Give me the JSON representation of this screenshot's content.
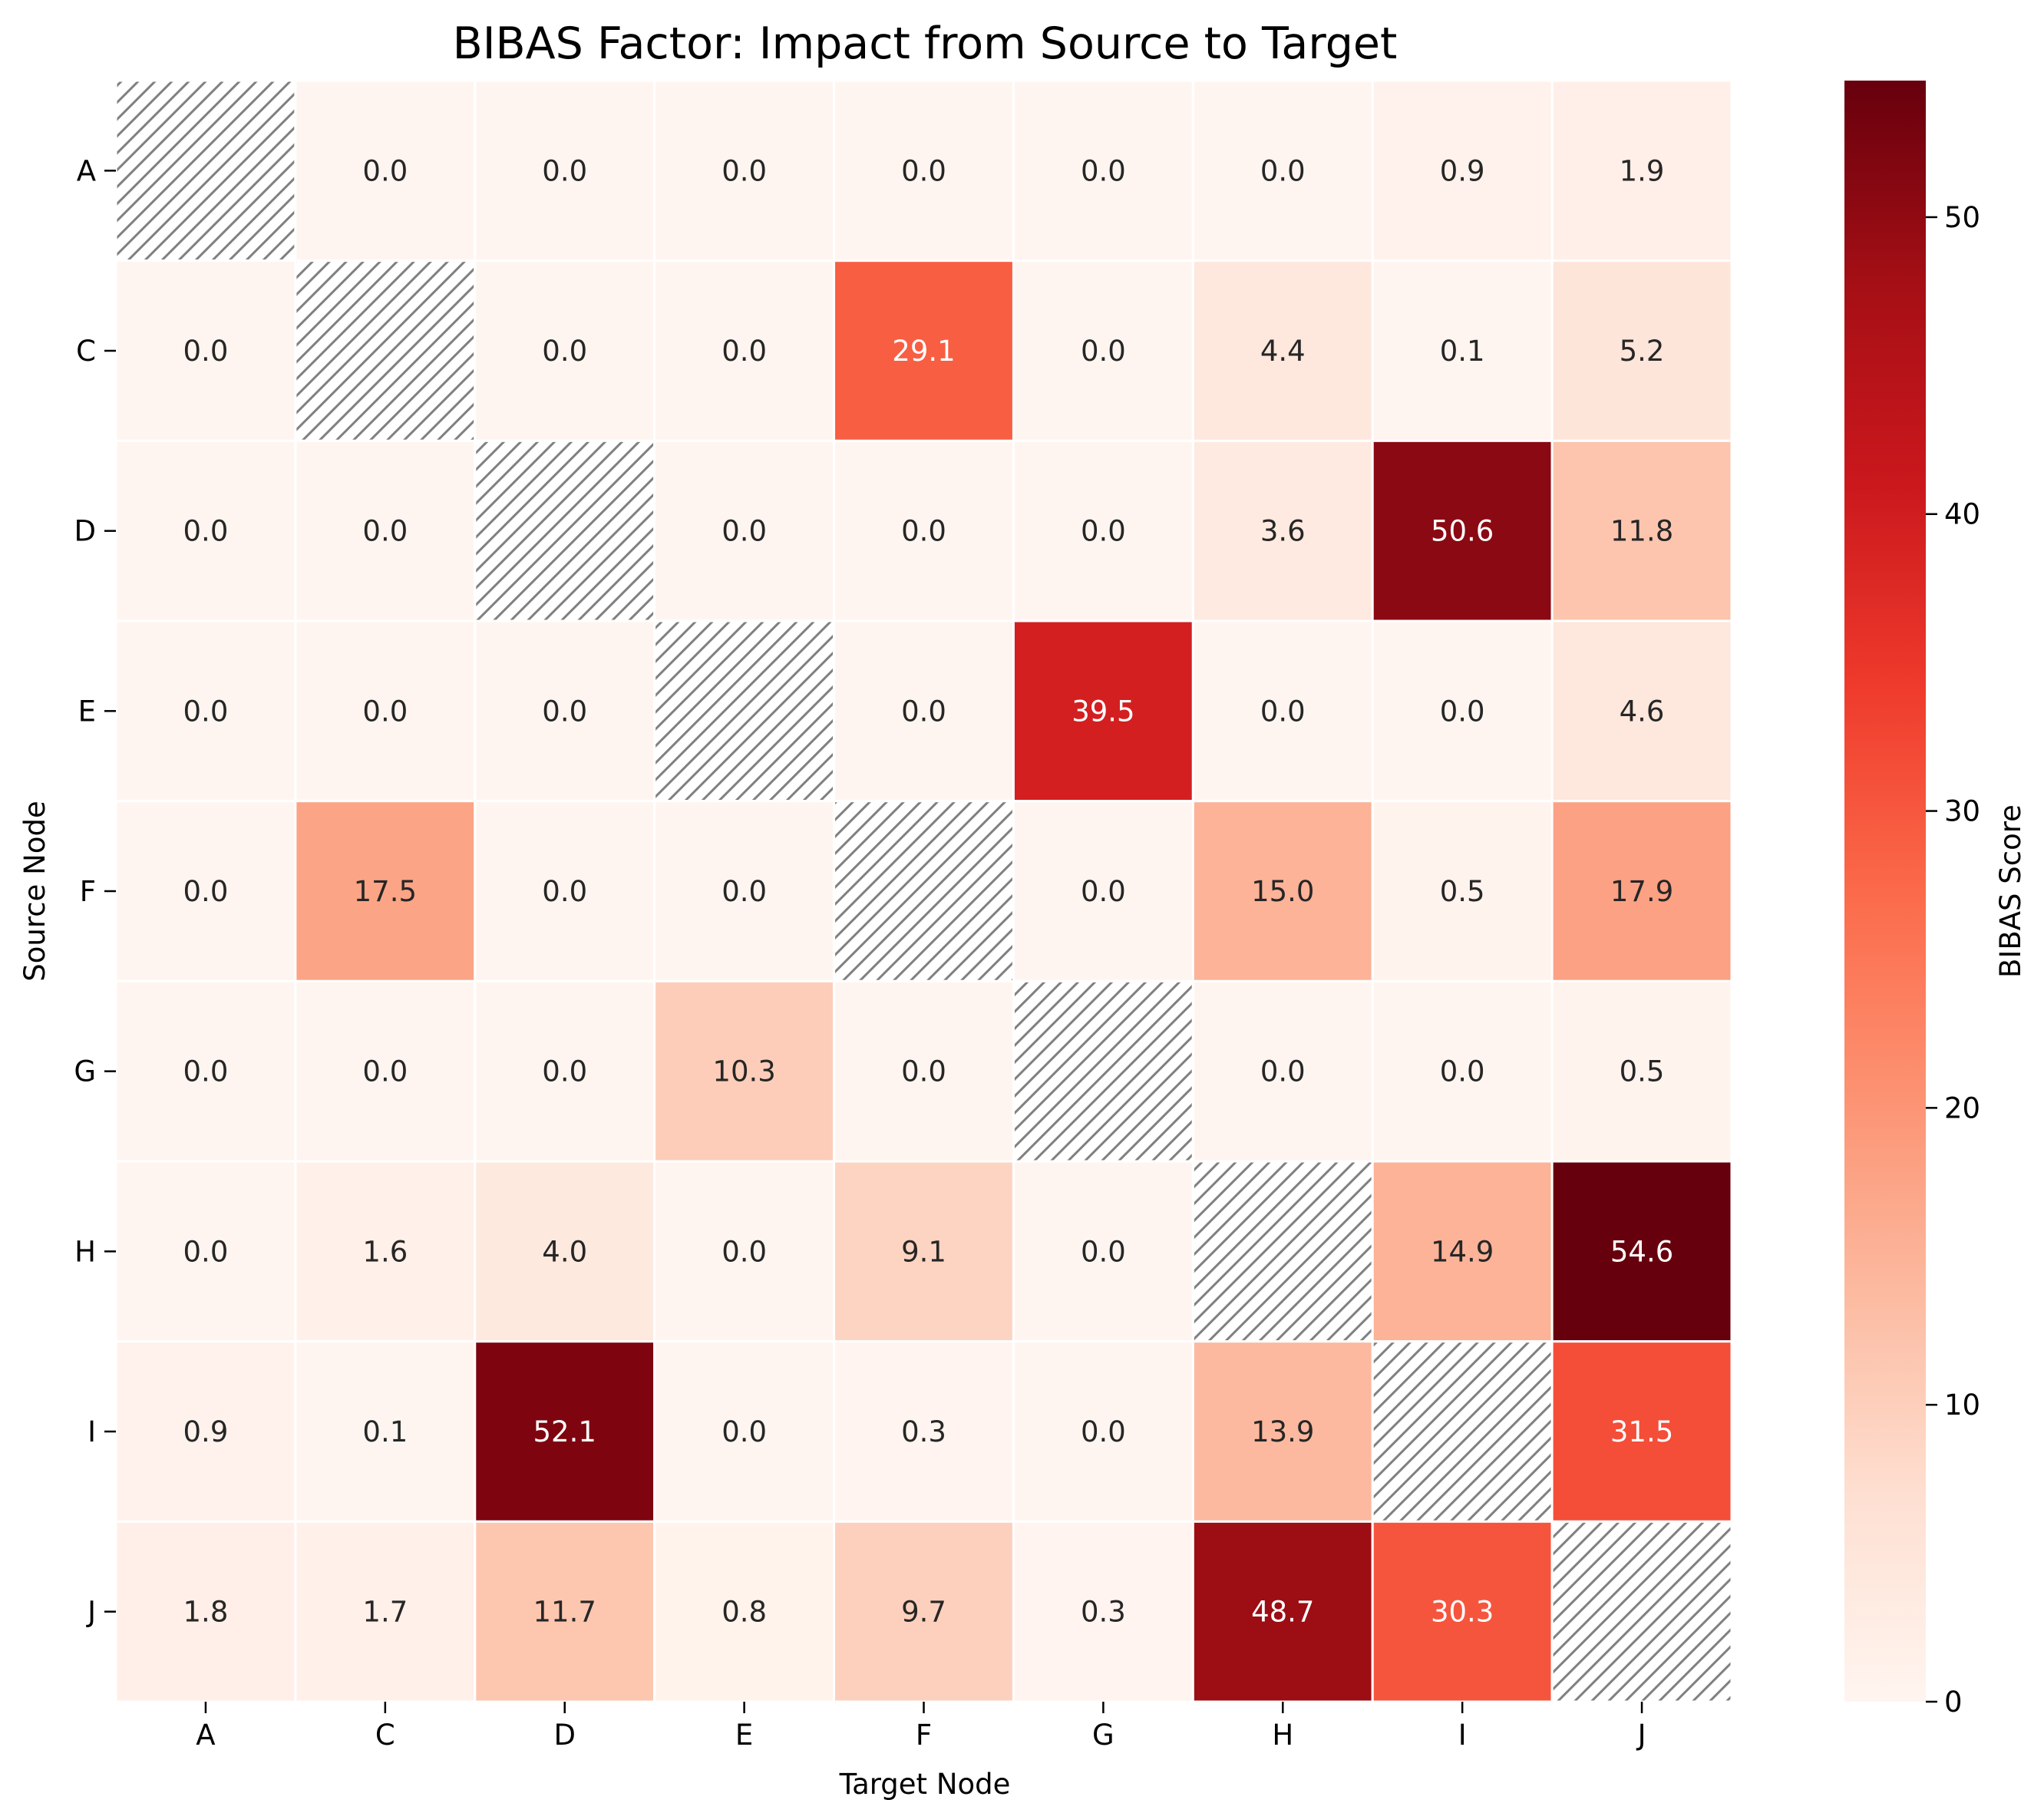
{
  "chart_data": {
    "type": "heatmap",
    "title": "BIBAS Factor: Impact from Source to Target",
    "xlabel": "Target Node",
    "ylabel": "Source Node",
    "x_categories": [
      "A",
      "C",
      "D",
      "E",
      "F",
      "G",
      "H",
      "I",
      "J"
    ],
    "y_categories": [
      "A",
      "C",
      "D",
      "E",
      "F",
      "G",
      "H",
      "I",
      "J"
    ],
    "values": [
      [
        null,
        0.0,
        0.0,
        0.0,
        0.0,
        0.0,
        0.0,
        0.9,
        1.9
      ],
      [
        0.0,
        null,
        0.0,
        0.0,
        29.1,
        0.0,
        4.4,
        0.1,
        5.2
      ],
      [
        0.0,
        0.0,
        null,
        0.0,
        0.0,
        0.0,
        3.6,
        50.6,
        11.8
      ],
      [
        0.0,
        0.0,
        0.0,
        null,
        0.0,
        39.5,
        0.0,
        0.0,
        4.6
      ],
      [
        0.0,
        17.5,
        0.0,
        0.0,
        null,
        0.0,
        15.0,
        0.5,
        17.9
      ],
      [
        0.0,
        0.0,
        0.0,
        10.3,
        0.0,
        null,
        0.0,
        0.0,
        0.5
      ],
      [
        0.0,
        1.6,
        4.0,
        0.0,
        9.1,
        0.0,
        null,
        14.9,
        54.6
      ],
      [
        0.9,
        0.1,
        52.1,
        0.0,
        0.3,
        0.0,
        13.9,
        null,
        31.5
      ],
      [
        1.8,
        1.7,
        11.7,
        0.8,
        9.7,
        0.3,
        48.7,
        30.3,
        null
      ]
    ],
    "diagonal": "hatched",
    "colormap": "Reds",
    "colorbar": {
      "label": "BIBAS Score",
      "range": [
        0,
        54.6
      ],
      "ticks": [
        0,
        10,
        20,
        30,
        40,
        50
      ]
    },
    "grid": false
  }
}
